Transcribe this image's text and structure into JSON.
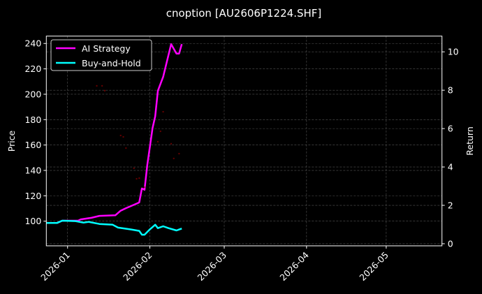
{
  "chart_data": {
    "type": "line",
    "title": "cnoption [AU2606P1224.SHF]",
    "xlabel": "",
    "ylabel_left": "Price",
    "ylabel_right": "Return",
    "x_type": "date",
    "xlim": [
      "2025-12-24",
      "2026-05-22"
    ],
    "ylim_left": [
      80.6,
      245.8
    ],
    "ylim_right": [
      -0.11,
      10.82
    ],
    "x_ticks": [
      "2026-01",
      "2026-02",
      "2026-03",
      "2026-04",
      "2026-05"
    ],
    "y_ticks_left": [
      100,
      120,
      140,
      160,
      180,
      200,
      220,
      240
    ],
    "y_ticks_right": [
      0,
      2,
      4,
      6,
      8,
      10
    ],
    "grid": true,
    "legend_position": "upper-left",
    "series": [
      {
        "name": "AI Strategy",
        "axis": "right",
        "color": "#ff00ff",
        "points": [
          [
            "2025-12-24",
            1.08
          ],
          [
            "2025-12-28",
            1.08
          ],
          [
            "2025-12-30",
            1.2
          ],
          [
            "2026-01-05",
            1.2
          ],
          [
            "2026-01-06",
            1.27
          ],
          [
            "2026-01-10",
            1.35
          ],
          [
            "2026-01-13",
            1.45
          ],
          [
            "2026-01-19",
            1.48
          ],
          [
            "2026-01-21",
            1.72
          ],
          [
            "2026-01-23",
            1.85
          ],
          [
            "2026-01-27",
            2.09
          ],
          [
            "2026-01-28",
            2.15
          ],
          [
            "2026-01-29",
            2.88
          ],
          [
            "2026-01-30",
            2.81
          ],
          [
            "2026-01-31",
            4.09
          ],
          [
            "2026-02-02",
            6.03
          ],
          [
            "2026-02-03",
            6.64
          ],
          [
            "2026-02-04",
            7.97
          ],
          [
            "2026-02-06",
            8.7
          ],
          [
            "2026-02-09",
            10.4
          ],
          [
            "2026-02-11",
            9.91
          ],
          [
            "2026-02-12",
            9.91
          ],
          [
            "2026-02-13",
            10.4
          ]
        ]
      },
      {
        "name": "Buy-and-Hold",
        "axis": "right",
        "color": "#00ffff",
        "points": [
          [
            "2025-12-24",
            1.08
          ],
          [
            "2025-12-28",
            1.08
          ],
          [
            "2025-12-30",
            1.2
          ],
          [
            "2026-01-04",
            1.18
          ],
          [
            "2026-01-07",
            1.1
          ],
          [
            "2026-01-09",
            1.14
          ],
          [
            "2026-01-13",
            1.03
          ],
          [
            "2026-01-18",
            0.99
          ],
          [
            "2026-01-20",
            0.84
          ],
          [
            "2026-01-25",
            0.74
          ],
          [
            "2026-01-28",
            0.67
          ],
          [
            "2026-01-29",
            0.47
          ],
          [
            "2026-01-30",
            0.47
          ],
          [
            "2026-02-01",
            0.75
          ],
          [
            "2026-02-03",
            0.99
          ],
          [
            "2026-02-04",
            0.81
          ],
          [
            "2026-02-06",
            0.91
          ],
          [
            "2026-02-08",
            0.81
          ],
          [
            "2026-02-11",
            0.69
          ],
          [
            "2026-02-13",
            0.79
          ]
        ]
      },
      {
        "axis": "left",
        "kind": "scatter",
        "color": "#8b0000",
        "points": [
          [
            "2026-01-12",
            206.6
          ],
          [
            "2026-01-14",
            206.6
          ],
          [
            "2026-01-15",
            202.8
          ],
          [
            "2026-01-21",
            167.5
          ],
          [
            "2026-01-22",
            166.4
          ],
          [
            "2026-01-23",
            157.6
          ],
          [
            "2026-01-26",
            141.7
          ],
          [
            "2026-01-27",
            133.4
          ],
          [
            "2026-01-28",
            133.9
          ],
          [
            "2026-01-30",
            126.8
          ],
          [
            "2026-02-04",
            162.6
          ],
          [
            "2026-02-05",
            170.8
          ],
          [
            "2026-02-06",
            186.2
          ],
          [
            "2026-02-09",
            161.0
          ],
          [
            "2026-02-10",
            149.4
          ],
          [
            "2026-02-12",
            153.2
          ]
        ]
      }
    ]
  }
}
